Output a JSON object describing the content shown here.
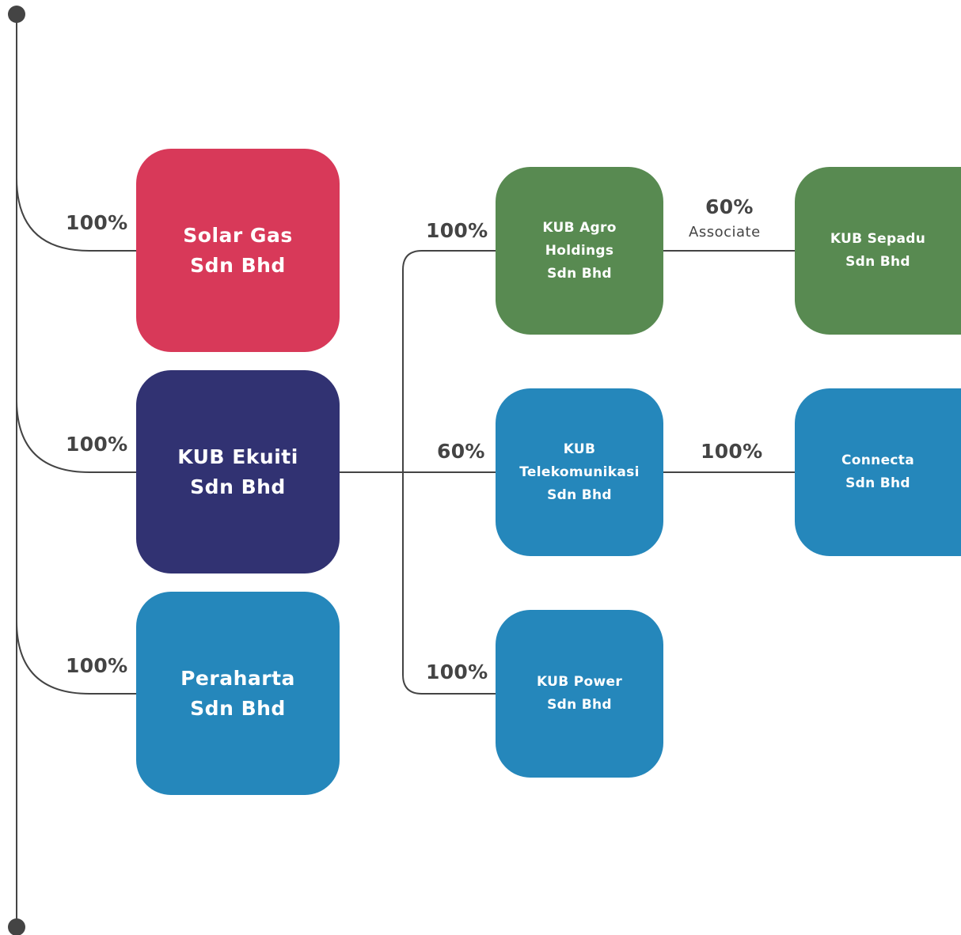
{
  "colors": {
    "red": "#d83959",
    "navy": "#313272",
    "blue": "#2587bb",
    "green": "#588a51",
    "line": "#444444"
  },
  "entities": {
    "solar_gas": {
      "line1": "Solar Gas",
      "line2": "Sdn Bhd"
    },
    "kub_ekuiti": {
      "line1": "KUB Ekuiti",
      "line2": "Sdn Bhd"
    },
    "peraharta": {
      "line1": "Peraharta",
      "line2": "Sdn Bhd"
    },
    "kub_agro": {
      "line1": "KUB Agro",
      "line2": "Holdings",
      "line3": "Sdn Bhd"
    },
    "kub_telekomunikasi": {
      "line1": "KUB",
      "line2": "Telekomunikasi",
      "line3": "Sdn Bhd"
    },
    "kub_power": {
      "line1": "KUB Power",
      "line2": "Sdn Bhd"
    },
    "kub_sepadu": {
      "line1": "KUB Sepadu",
      "line2": "Sdn Bhd"
    },
    "connecta": {
      "line1": "Connecta",
      "line2": "Sdn Bhd"
    }
  },
  "ownership": {
    "solar_gas": "100%",
    "kub_ekuiti": "100%",
    "peraharta": "100%",
    "kub_agro": "100%",
    "kub_telekomunikasi": "60%",
    "kub_power": "100%",
    "kub_sepadu": "60%",
    "kub_sepadu_note": "Associate",
    "connecta": "100%"
  }
}
